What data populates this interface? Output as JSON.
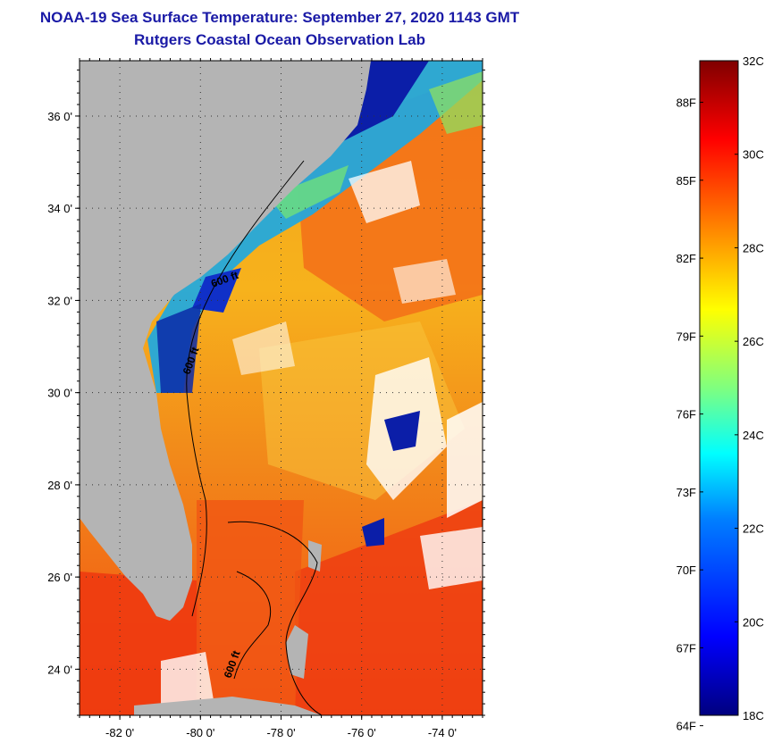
{
  "header": {
    "title": "NOAA-19 Sea Surface Temperature:  September 27, 2020 1143 GMT",
    "subtitle": "Rutgers Coastal Ocean Observation Lab"
  },
  "map": {
    "lon_range": [
      -83,
      -73
    ],
    "lat_range": [
      23,
      37.2
    ],
    "lat_ticks": [
      {
        "value": 24,
        "label": "24 0'"
      },
      {
        "value": 26,
        "label": "26 0'"
      },
      {
        "value": 28,
        "label": "28 0'"
      },
      {
        "value": 30,
        "label": "30 0'"
      },
      {
        "value": 32,
        "label": "32 0'"
      },
      {
        "value": 34,
        "label": "34 0'"
      },
      {
        "value": 36,
        "label": "36 0'"
      }
    ],
    "lon_ticks": [
      {
        "value": -82,
        "label": "-82 0'"
      },
      {
        "value": -80,
        "label": "-80 0'"
      },
      {
        "value": -78,
        "label": "-78 0'"
      },
      {
        "value": -76,
        "label": "-76 0'"
      },
      {
        "value": -74,
        "label": "-74 0'"
      }
    ],
    "contour_labels": [
      "600 ft",
      "600 ft",
      "600 ft"
    ],
    "land_color": "#b4b4b4",
    "grid": "dotted"
  },
  "colorbar": {
    "range_c": [
      18,
      32
    ],
    "celsius_labels": [
      "32C",
      "30C",
      "28C",
      "26C",
      "24C",
      "22C",
      "20C",
      "18C"
    ],
    "fahrenheit_labels": [
      "88F",
      "85F",
      "82F",
      "79F",
      "76F",
      "73F",
      "70F",
      "67F",
      "64F"
    ],
    "colors": [
      "#00007f",
      "#0000ff",
      "#007fff",
      "#00ffff",
      "#7fff7f",
      "#ffff00",
      "#ff7f00",
      "#ff0000",
      "#7f0000"
    ]
  }
}
